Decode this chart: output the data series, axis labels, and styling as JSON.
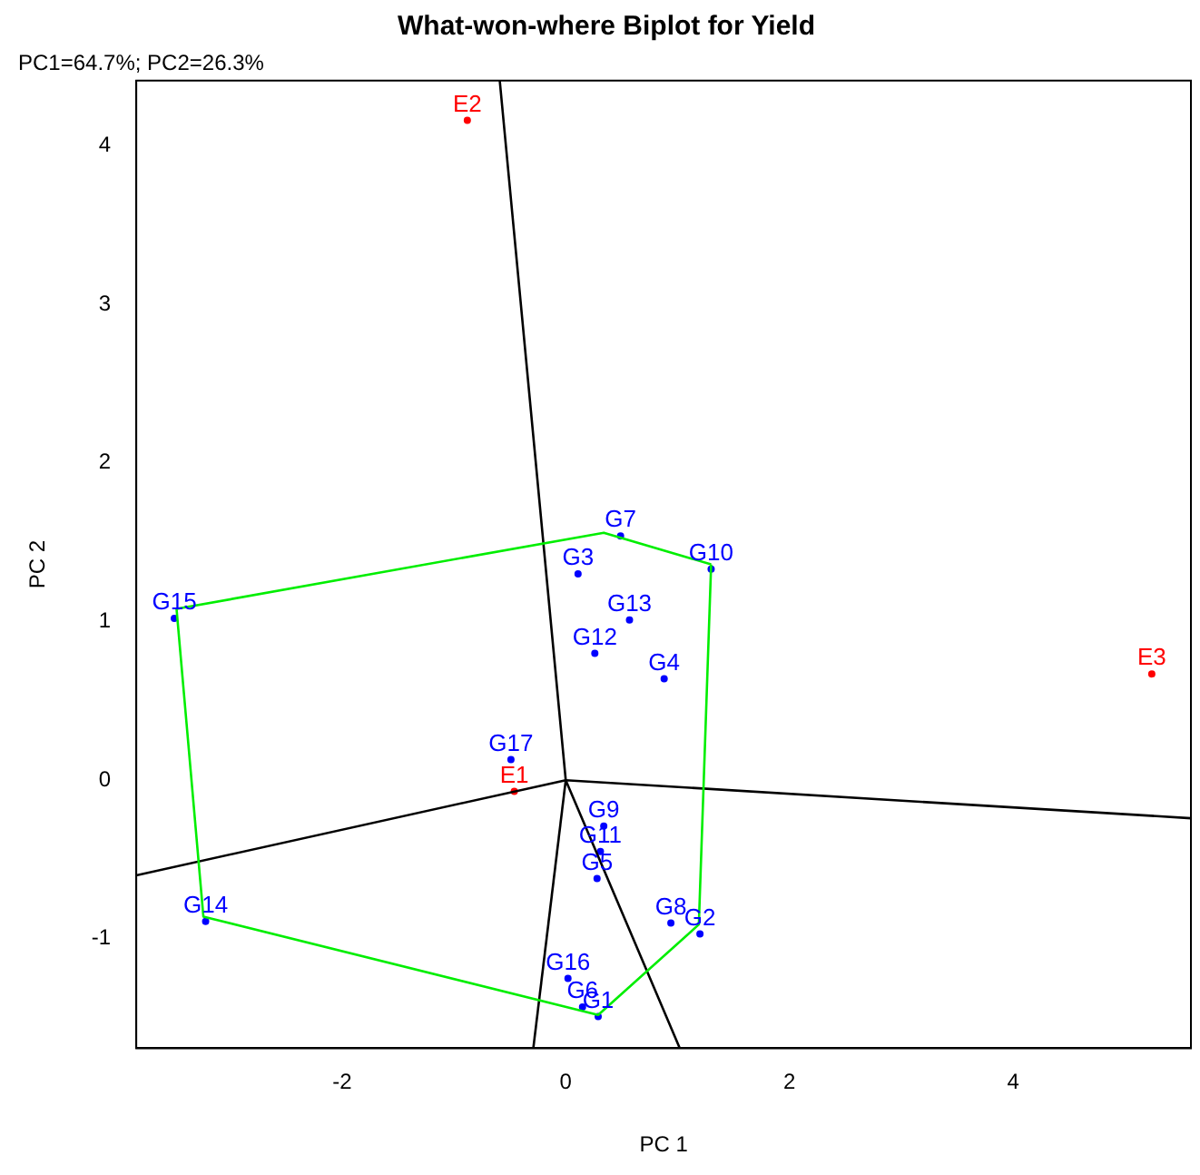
{
  "chart_data": {
    "type": "scatter",
    "title": "What-won-where Biplot for Yield",
    "subtitle": "PC1=64.7%; PC2=26.3%",
    "xlabel": "PC 1",
    "ylabel": "PC 2",
    "xlim": [
      -3.84,
      5.59
    ],
    "ylim": [
      -1.69,
      4.41
    ],
    "xticks": [
      -2,
      0,
      2,
      4
    ],
    "yticks": [
      -1,
      0,
      1,
      2,
      3,
      4
    ],
    "grid": false,
    "legend": false,
    "line_style": "solid",
    "series": [
      {
        "type": "line",
        "marker": "none",
        "color": "#00ee00",
        "x": [
          -3.48,
          0.34,
          1.3
        ],
        "values": [
          1.08,
          1.56,
          1.36
        ]
      },
      {
        "type": "line",
        "marker": "none",
        "color": "#00ee00",
        "x": [
          -3.48,
          -3.24,
          0.29,
          1.19,
          1.3
        ],
        "values": [
          1.08,
          -0.86,
          -1.48,
          -0.91,
          1.36
        ]
      },
      {
        "type": "line",
        "marker": "none",
        "color": "#000000",
        "x": [
          -3.84,
          0,
          5.59
        ],
        "values": [
          -0.6,
          0,
          -0.24
        ]
      },
      {
        "type": "line",
        "marker": "none",
        "color": "#000000",
        "x": [
          -0.59,
          0,
          1.02
        ],
        "values": [
          4.41,
          0,
          -1.69
        ]
      },
      {
        "type": "line",
        "marker": "none",
        "color": "#000000",
        "x": [
          -0.29,
          0
        ],
        "values": [
          -1.69,
          0
        ]
      },
      {
        "type": "scatter",
        "marker": "circle",
        "color": "#ff0000",
        "x": [
          -0.46,
          -0.88,
          5.24
        ],
        "values": [
          -0.07,
          4.16,
          0.67
        ],
        "value_labels": [
          "E1",
          "E2",
          "E3"
        ]
      },
      {
        "type": "scatter",
        "marker": "circle",
        "color": "#0000ff",
        "x": [
          0.29,
          1.2,
          0.11,
          0.88,
          0.28,
          0.15,
          0.49,
          0.94,
          0.34,
          1.3,
          0.31,
          0.26,
          0.57,
          -3.22,
          -3.5,
          0.02,
          -0.49
        ],
        "values": [
          -1.49,
          -0.97,
          1.3,
          0.64,
          -0.62,
          -1.43,
          1.54,
          -0.9,
          -0.29,
          1.33,
          -0.45,
          0.8,
          1.01,
          -0.89,
          1.02,
          -1.25,
          0.13
        ],
        "value_labels": [
          "G1",
          "G2",
          "G3",
          "G4",
          "G5",
          "G6",
          "G7",
          "G8",
          "G9",
          "G10",
          "G11",
          "G12",
          "G13",
          "G14",
          "G15",
          "G16",
          "G17"
        ]
      }
    ]
  }
}
